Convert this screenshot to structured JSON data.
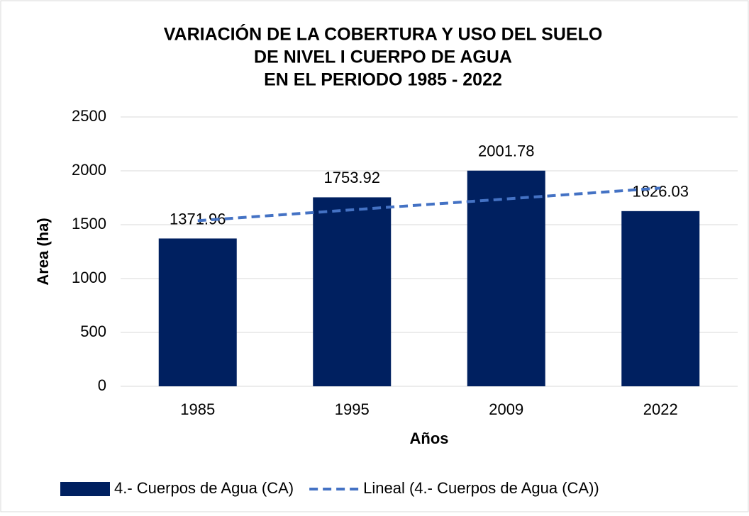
{
  "chart_data": {
    "type": "bar",
    "title": [
      "VARIACIÓN DE LA COBERTURA Y USO DEL SUELO",
      "DE NIVEL I CUERPO DE AGUA",
      "EN EL PERIODO 1985 - 2022"
    ],
    "xlabel": "Años",
    "ylabel": "Area (ha)",
    "categories": [
      "1985",
      "1995",
      "2009",
      "2022"
    ],
    "series": [
      {
        "name": "4.- Cuerpos de Agua (CA)",
        "color": "#002060",
        "values": [
          1371.96,
          1753.92,
          2001.78,
          1626.03
        ]
      },
      {
        "name": "Lineal (4.- Cuerpos de Agua (CA))",
        "color": "#4472c4",
        "type": "trendline",
        "values": [
          1537,
          1638,
          1739,
          1840
        ]
      }
    ],
    "ylim": [
      0,
      2500
    ],
    "yticks": [
      0,
      500,
      1000,
      1500,
      2000,
      2500
    ],
    "grid": true,
    "legend": "bottom"
  }
}
